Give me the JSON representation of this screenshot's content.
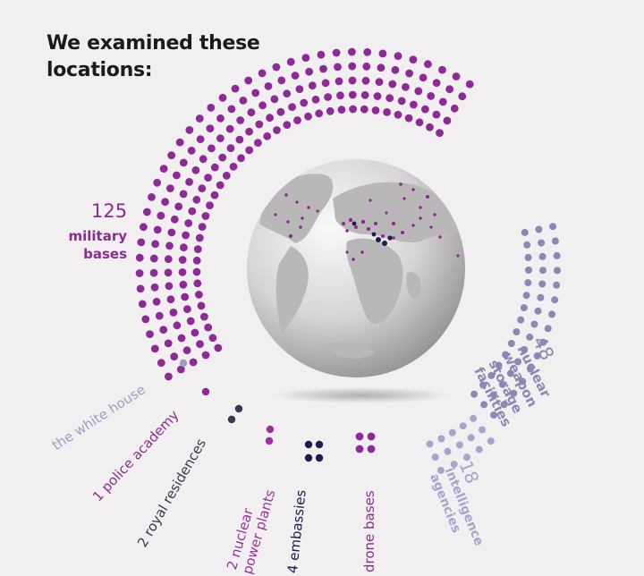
{
  "title_lines": [
    "We examined these",
    "locations:"
  ],
  "colors": {
    "military": "#8e2a97",
    "nuclear_weapons": "#8e87b4",
    "intelligence": "#aaa4cc",
    "white_house": "#a39cc4",
    "police": "#8b2c93",
    "royal": "#3b3550",
    "power_plants": "#9a2fa0",
    "embassies": "#24184f",
    "drone": "#8e2a97"
  },
  "categories": {
    "military": {
      "count": "125",
      "lines": [
        "military",
        "bases"
      ]
    },
    "nuclear_weapons": {
      "count": "48",
      "lines": [
        "nuclear",
        "weapon",
        "storage",
        "facilities"
      ]
    },
    "intelligence": {
      "count": "18",
      "lines": [
        "intelligence",
        "agencies"
      ]
    },
    "white_house": {
      "label": "the white house"
    },
    "police": {
      "label": "1 police academy"
    },
    "royal": {
      "label": "2 royal residences"
    },
    "power_plants": {
      "lines": [
        "2 nuclear",
        "power plants"
      ]
    },
    "embassies": {
      "label": "4 embassies"
    },
    "drone": {
      "label": "drone bases"
    }
  }
}
